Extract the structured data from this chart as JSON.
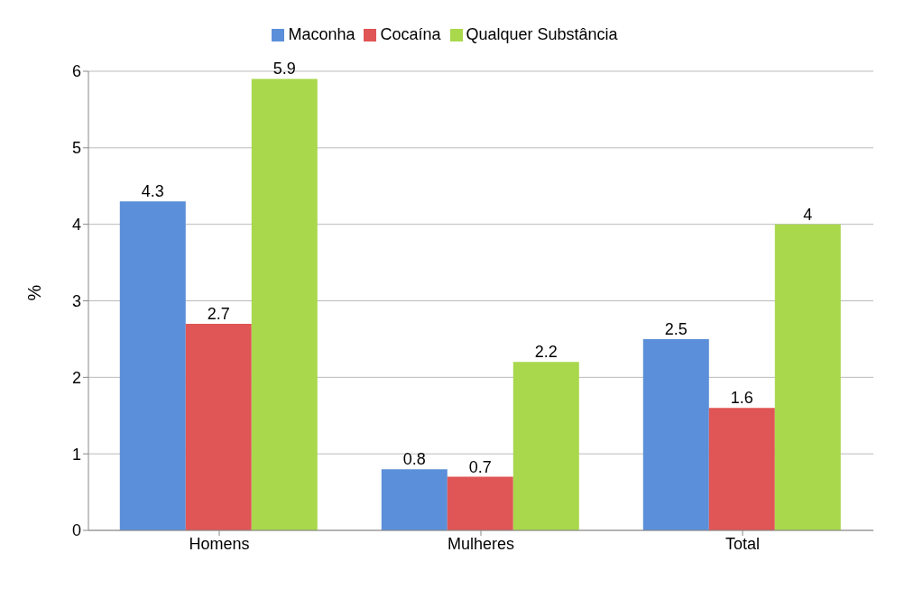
{
  "chart_data": {
    "type": "bar",
    "ylabel": "%",
    "categories": [
      "Homens",
      "Mulheres",
      "Total"
    ],
    "series": [
      {
        "name": "Maconha",
        "color": "#5b8fd9",
        "values": [
          4.3,
          0.8,
          2.5
        ]
      },
      {
        "name": "Cocaína",
        "color": "#e05555",
        "values": [
          2.7,
          0.7,
          1.6
        ]
      },
      {
        "name": "Qualquer Substância",
        "color": "#a9d84c",
        "values": [
          5.9,
          2.2,
          4
        ]
      }
    ],
    "ylim": [
      0,
      6
    ],
    "yticks": [
      0,
      1,
      2,
      3,
      4,
      5,
      6
    ],
    "grid": "y",
    "legend": "top",
    "data_labels": true
  }
}
